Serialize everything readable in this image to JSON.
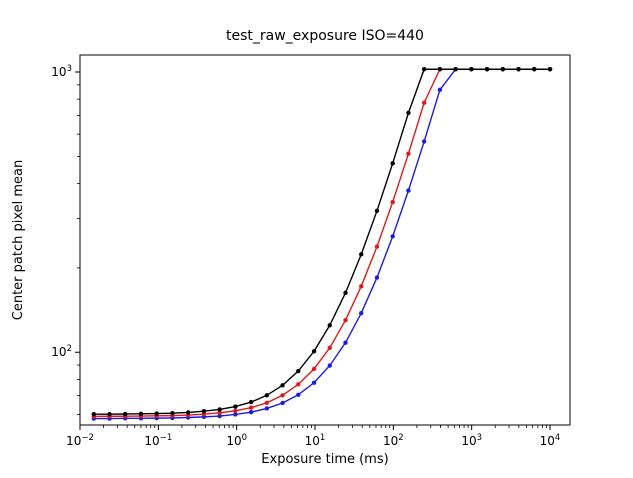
{
  "figure": {
    "background": "#ffffff",
    "frame_color": "#000000"
  },
  "chart_data": {
    "type": "line",
    "title": "test_raw_exposure ISO=440",
    "xlabel": "Exposure time (ms)",
    "ylabel": "Center patch pixel mean",
    "xscale": "log",
    "yscale": "log",
    "xlim": [
      0.01,
      18000
    ],
    "ylim": [
      55,
      1150
    ],
    "x_tick_exponents": [
      -2,
      -1,
      0,
      1,
      2,
      3,
      4
    ],
    "y_tick_exponents": [
      2,
      3
    ],
    "grid": false,
    "legend": "none",
    "marker": "circle",
    "x": [
      0.015,
      0.0238,
      0.0378,
      0.06,
      0.0953,
      0.1514,
      0.2404,
      0.3817,
      0.6062,
      0.9625,
      1.528,
      2.427,
      3.854,
      6.121,
      9.72,
      15.43,
      24.51,
      38.92,
      61.81,
      98.15,
      155.9,
      247.5,
      393.0,
      624.1,
      991.1,
      1574,
      2499,
      3969,
      6303,
      10009
    ],
    "series": [
      {
        "name": "black-channel",
        "color": "#000000",
        "values": [
          60.1,
          60.1,
          60.2,
          60.3,
          60.4,
          60.6,
          61.0,
          61.6,
          62.5,
          64.0,
          66.4,
          70.2,
          76.2,
          85.7,
          100.8,
          124.8,
          162.9,
          223.5,
          319.6,
          472.2,
          714.8,
          1023,
          1023,
          1023,
          1023,
          1023,
          1023,
          1023,
          1023,
          1023
        ]
      },
      {
        "name": "red-channel",
        "color": "#dc1c1c",
        "values": [
          59.0,
          59.1,
          59.1,
          59.2,
          59.3,
          59.4,
          59.7,
          60.1,
          60.8,
          61.8,
          63.4,
          66.0,
          70.2,
          76.8,
          87.2,
          103.7,
          130.1,
          171.9,
          238.2,
          343.6,
          511.1,
          776.8,
          1023,
          1023,
          1023,
          1023,
          1023,
          1023,
          1023,
          1023
        ]
      },
      {
        "name": "blue-channel",
        "color": "#1c1cdc",
        "values": [
          58.0,
          58.0,
          58.1,
          58.1,
          58.2,
          58.3,
          58.5,
          58.8,
          59.2,
          60.0,
          61.1,
          63.0,
          65.9,
          70.5,
          77.9,
          89.6,
          108.2,
          137.8,
          184.7,
          259.2,
          377.6,
          565.4,
          863.7,
          1023,
          1023,
          1023,
          1023,
          1023,
          1023,
          1023
        ]
      }
    ]
  }
}
